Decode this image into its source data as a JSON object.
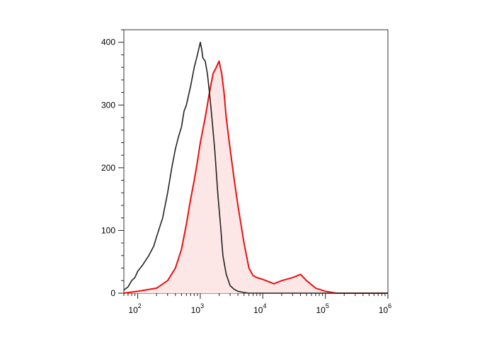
{
  "chart_data": {
    "type": "line",
    "title": "",
    "xlabel": "",
    "ylabel": "",
    "x_scale": "log10",
    "xlim": [
      60,
      1000000
    ],
    "ylim": [
      0,
      420
    ],
    "y_ticks": [
      {
        "value": 0,
        "label": "0"
      },
      {
        "value": 100,
        "label": "100"
      },
      {
        "value": 200,
        "label": "200"
      },
      {
        "value": 300,
        "label": "300"
      },
      {
        "value": 400,
        "label": "400"
      }
    ],
    "x_ticks": [
      {
        "value": 100,
        "base": "10",
        "exp": "2"
      },
      {
        "value": 1000,
        "base": "10",
        "exp": "3"
      },
      {
        "value": 10000,
        "base": "10",
        "exp": "4"
      },
      {
        "value": 100000,
        "base": "10",
        "exp": "5"
      },
      {
        "value": 1000000,
        "base": "10",
        "exp": "6"
      }
    ],
    "series": [
      {
        "color": "#222222",
        "fill": "none",
        "x": [
          60,
          70,
          80,
          90,
          100,
          120,
          150,
          180,
          200,
          250,
          300,
          350,
          400,
          450,
          500,
          550,
          600,
          700,
          800,
          900,
          1000,
          1050,
          1100,
          1200,
          1300,
          1400,
          1500,
          1700,
          1900,
          2100,
          2300,
          2600,
          3000,
          3500,
          4000,
          5000,
          6000,
          7000,
          10000,
          100000,
          200000,
          1000000
        ],
        "y": [
          5,
          10,
          20,
          25,
          35,
          45,
          60,
          75,
          90,
          120,
          160,
          200,
          230,
          250,
          265,
          290,
          300,
          330,
          360,
          380,
          400,
          390,
          375,
          370,
          350,
          320,
          290,
          230,
          160,
          110,
          60,
          30,
          12,
          6,
          3,
          1,
          0,
          0,
          0,
          0,
          0,
          0
        ]
      },
      {
        "color": "#e8110f",
        "fill": "#fce6e6",
        "x": [
          60,
          100,
          200,
          300,
          400,
          500,
          600,
          700,
          800,
          900,
          1000,
          1200,
          1400,
          1600,
          1800,
          2000,
          2200,
          2400,
          2600,
          3000,
          3500,
          4000,
          5000,
          6000,
          7000,
          8000,
          10000,
          15000,
          20000,
          30000,
          40000,
          50000,
          70000,
          100000,
          150000,
          200000,
          300000,
          1000000
        ],
        "y": [
          0,
          3,
          8,
          20,
          40,
          70,
          110,
          150,
          180,
          210,
          240,
          280,
          320,
          350,
          360,
          370,
          350,
          320,
          280,
          230,
          180,
          140,
          80,
          40,
          28,
          25,
          22,
          15,
          20,
          25,
          30,
          20,
          8,
          3,
          0,
          0,
          0,
          0
        ]
      }
    ],
    "grid": false,
    "legend": "none"
  }
}
